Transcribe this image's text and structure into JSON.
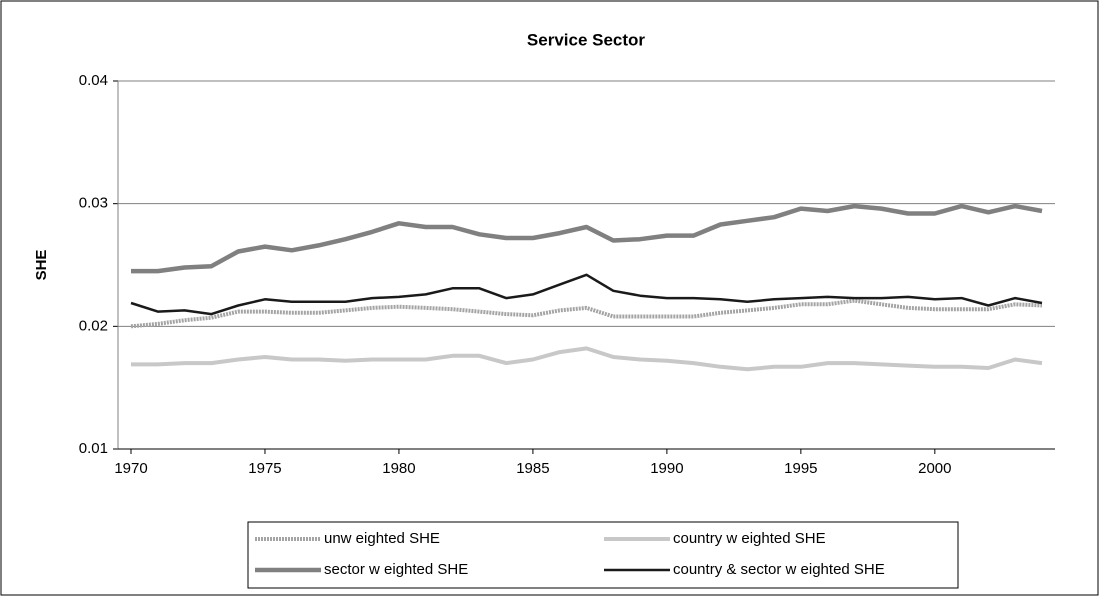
{
  "chart_data": {
    "type": "line",
    "title": "Service Sector",
    "y_label": "SHE",
    "x": [
      1970,
      1971,
      1972,
      1973,
      1974,
      1975,
      1976,
      1977,
      1978,
      1979,
      1980,
      1981,
      1982,
      1983,
      1984,
      1985,
      1986,
      1987,
      1988,
      1989,
      1990,
      1991,
      1992,
      1993,
      1994,
      1995,
      1996,
      1997,
      1998,
      1999,
      2000,
      2001,
      2002,
      2003,
      2004
    ],
    "xlim": [
      1970,
      2004
    ],
    "xticks": [
      1970,
      1975,
      1980,
      1985,
      1990,
      1995,
      2000
    ],
    "ylim": [
      0.01,
      0.04
    ],
    "yticks": [
      0.01,
      0.02,
      0.03,
      0.04
    ],
    "grid": true,
    "legend": "bottom",
    "series": [
      {
        "name": "unw eighted SHE",
        "color": "#a4a4a4",
        "values": [
          0.02,
          0.0202,
          0.0205,
          0.0207,
          0.0212,
          0.0212,
          0.0211,
          0.0211,
          0.0213,
          0.0215,
          0.0216,
          0.0215,
          0.0214,
          0.0212,
          0.021,
          0.0209,
          0.0213,
          0.0215,
          0.0208,
          0.0208,
          0.0208,
          0.0208,
          0.0211,
          0.0213,
          0.0215,
          0.0218,
          0.0218,
          0.0221,
          0.0218,
          0.0215,
          0.0214,
          0.0214,
          0.0214,
          0.0218,
          0.0217
        ]
      },
      {
        "name": "country w eighted SHE",
        "color": "#c8c8c8",
        "values": [
          0.0169,
          0.0169,
          0.017,
          0.017,
          0.0173,
          0.0175,
          0.0173,
          0.0173,
          0.0172,
          0.0173,
          0.0173,
          0.0173,
          0.0176,
          0.0176,
          0.017,
          0.0173,
          0.0179,
          0.0182,
          0.0175,
          0.0173,
          0.0172,
          0.017,
          0.0167,
          0.0165,
          0.0167,
          0.0167,
          0.017,
          0.017,
          0.0169,
          0.0168,
          0.0167,
          0.0167,
          0.0166,
          0.0173,
          0.017
        ]
      },
      {
        "name": "sector w eighted SHE",
        "color": "#808080",
        "values": [
          0.0245,
          0.0245,
          0.0248,
          0.0249,
          0.0261,
          0.0265,
          0.0262,
          0.0266,
          0.0271,
          0.0277,
          0.0284,
          0.0281,
          0.0281,
          0.0275,
          0.0272,
          0.0272,
          0.0276,
          0.0281,
          0.027,
          0.0271,
          0.0274,
          0.0274,
          0.0283,
          0.0286,
          0.0289,
          0.0296,
          0.0294,
          0.0298,
          0.0296,
          0.0292,
          0.0292,
          0.0298,
          0.0293,
          0.0298,
          0.0294
        ]
      },
      {
        "name": "country & sector w eighted SHE",
        "color": "#1a1a1a",
        "values": [
          0.0219,
          0.0212,
          0.0213,
          0.021,
          0.0217,
          0.0222,
          0.022,
          0.022,
          0.022,
          0.0223,
          0.0224,
          0.0226,
          0.0231,
          0.0231,
          0.0223,
          0.0226,
          0.0234,
          0.0242,
          0.0229,
          0.0225,
          0.0223,
          0.0223,
          0.0222,
          0.022,
          0.0222,
          0.0223,
          0.0224,
          0.0223,
          0.0223,
          0.0224,
          0.0222,
          0.0223,
          0.0217,
          0.0223,
          0.0219
        ]
      }
    ]
  }
}
